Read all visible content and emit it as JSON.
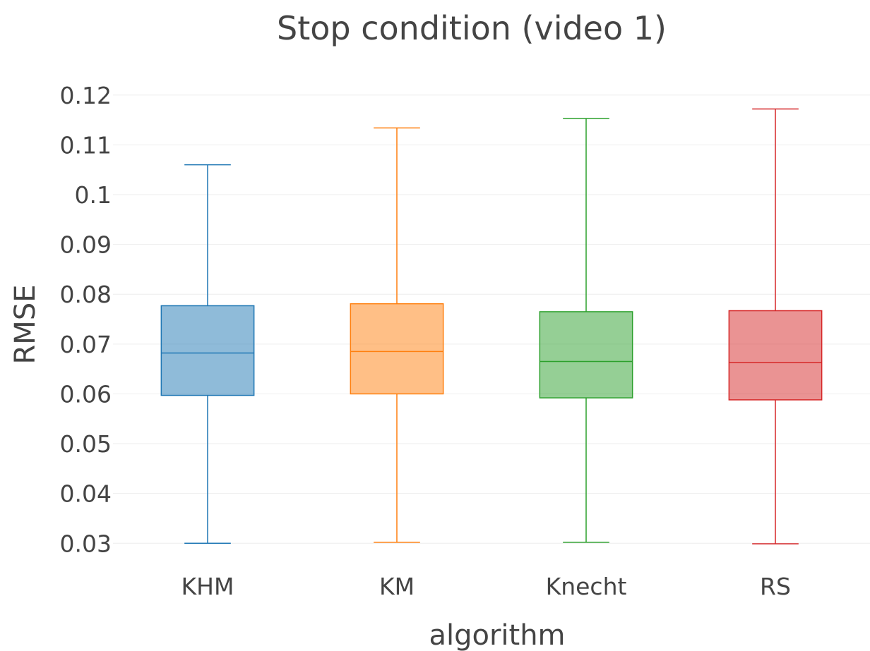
{
  "chart_data": {
    "type": "box",
    "title": "Stop condition (video 1)",
    "xlabel": "algorithm",
    "ylabel": "RMSE",
    "ylim": [
      0.0265,
      0.1245
    ],
    "yticks": [
      {
        "value": 0.03,
        "label": "0.03"
      },
      {
        "value": 0.04,
        "label": "0.04"
      },
      {
        "value": 0.05,
        "label": "0.05"
      },
      {
        "value": 0.06,
        "label": "0.06"
      },
      {
        "value": 0.07,
        "label": "0.07"
      },
      {
        "value": 0.08,
        "label": "0.08"
      },
      {
        "value": 0.09,
        "label": "0.09"
      },
      {
        "value": 0.1,
        "label": "0.1"
      },
      {
        "value": 0.11,
        "label": "0.11"
      },
      {
        "value": 0.12,
        "label": "0.12"
      }
    ],
    "grid": true,
    "categories": [
      "KHM",
      "KM",
      "Knecht",
      "RS"
    ],
    "series": [
      {
        "name": "KHM",
        "color": "#1f77b4",
        "min": 0.03,
        "q1": 0.0597,
        "median": 0.0682,
        "q3": 0.0777,
        "max": 0.106
      },
      {
        "name": "KM",
        "color": "#ff7f0e",
        "min": 0.0302,
        "q1": 0.06,
        "median": 0.0685,
        "q3": 0.0781,
        "max": 0.1134
      },
      {
        "name": "Knecht",
        "color": "#2ca02c",
        "min": 0.0302,
        "q1": 0.0592,
        "median": 0.0665,
        "q3": 0.0765,
        "max": 0.1153
      },
      {
        "name": "RS",
        "color": "#d62728",
        "min": 0.0299,
        "q1": 0.0588,
        "median": 0.0663,
        "q3": 0.0767,
        "max": 0.1172
      }
    ]
  }
}
